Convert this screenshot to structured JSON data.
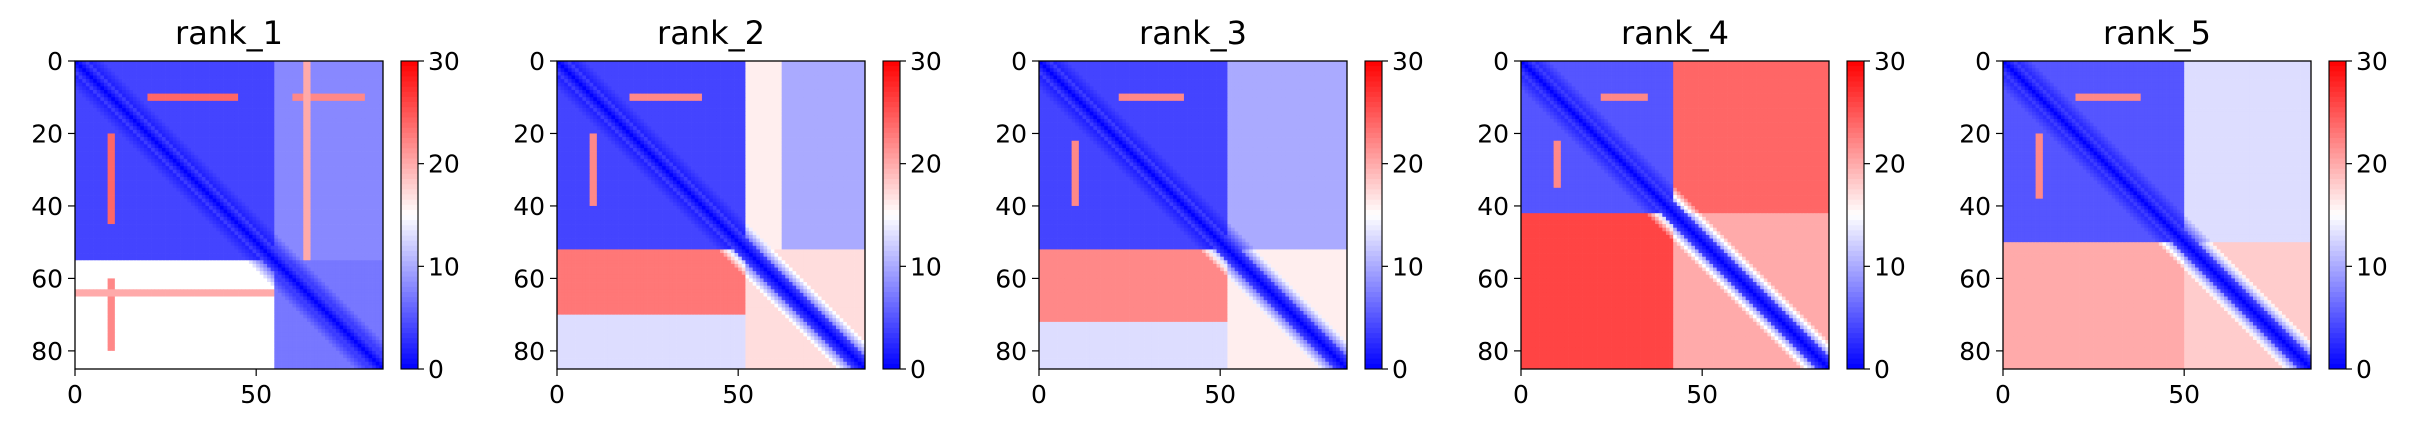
{
  "figure": {
    "panel_count": 5
  },
  "chart_data": [
    {
      "type": "heatmap",
      "title": "rank_1",
      "matrix_size": 85,
      "x_ticks": [
        0,
        50
      ],
      "y_ticks": [
        0,
        20,
        40,
        60,
        80
      ],
      "colorbar": {
        "range": [
          0,
          30
        ],
        "ticks": [
          0,
          10,
          20,
          30
        ],
        "colormap": [
          "#0000ff",
          "#ffffff",
          "#ff0000"
        ],
        "center": 15
      },
      "blocks": [
        {
          "rows": [
            0,
            55
          ],
          "cols": [
            0,
            55
          ],
          "value": 4
        },
        {
          "rows": [
            0,
            55
          ],
          "cols": [
            55,
            85
          ],
          "value": 8
        },
        {
          "rows": [
            55,
            85
          ],
          "cols": [
            0,
            55
          ],
          "value": 15
        },
        {
          "rows": [
            55,
            85
          ],
          "cols": [
            55,
            85
          ],
          "value": 7
        }
      ],
      "stripes": [
        {
          "row": 9,
          "cols": [
            20,
            45
          ],
          "value": 24
        },
        {
          "row": 9,
          "cols": [
            60,
            80
          ],
          "value": 22
        },
        {
          "row": 63,
          "cols": [
            0,
            55
          ],
          "value": 20
        }
      ]
    },
    {
      "type": "heatmap",
      "title": "rank_2",
      "matrix_size": 85,
      "x_ticks": [
        0,
        50
      ],
      "y_ticks": [
        0,
        20,
        40,
        60,
        80
      ],
      "colorbar": {
        "range": [
          0,
          30
        ],
        "ticks": [
          0,
          10,
          20,
          30
        ],
        "colormap": [
          "#0000ff",
          "#ffffff",
          "#ff0000"
        ],
        "center": 15
      },
      "blocks": [
        {
          "rows": [
            0,
            52
          ],
          "cols": [
            0,
            52
          ],
          "value": 4
        },
        {
          "rows": [
            0,
            52
          ],
          "cols": [
            52,
            62
          ],
          "value": 16
        },
        {
          "rows": [
            0,
            52
          ],
          "cols": [
            62,
            85
          ],
          "value": 10
        },
        {
          "rows": [
            52,
            70
          ],
          "cols": [
            0,
            52
          ],
          "value": 23
        },
        {
          "rows": [
            70,
            85
          ],
          "cols": [
            0,
            52
          ],
          "value": 13
        },
        {
          "rows": [
            52,
            85
          ],
          "cols": [
            52,
            85
          ],
          "value": 17
        }
      ],
      "stripes": [
        {
          "row": 9,
          "cols": [
            20,
            40
          ],
          "value": 22
        }
      ]
    },
    {
      "type": "heatmap",
      "title": "rank_3",
      "matrix_size": 85,
      "x_ticks": [
        0,
        50
      ],
      "y_ticks": [
        0,
        20,
        40,
        60,
        80
      ],
      "colorbar": {
        "range": [
          0,
          30
        ],
        "ticks": [
          0,
          10,
          20,
          30
        ],
        "colormap": [
          "#0000ff",
          "#ffffff",
          "#ff0000"
        ],
        "center": 15
      },
      "blocks": [
        {
          "rows": [
            0,
            52
          ],
          "cols": [
            0,
            52
          ],
          "value": 4
        },
        {
          "rows": [
            0,
            52
          ],
          "cols": [
            52,
            85
          ],
          "value": 10
        },
        {
          "rows": [
            52,
            72
          ],
          "cols": [
            0,
            52
          ],
          "value": 22
        },
        {
          "rows": [
            72,
            85
          ],
          "cols": [
            0,
            52
          ],
          "value": 13
        },
        {
          "rows": [
            52,
            85
          ],
          "cols": [
            52,
            85
          ],
          "value": 16
        }
      ],
      "stripes": [
        {
          "row": 9,
          "cols": [
            22,
            40
          ],
          "value": 22
        }
      ]
    },
    {
      "type": "heatmap",
      "title": "rank_4",
      "matrix_size": 85,
      "x_ticks": [
        0,
        50
      ],
      "y_ticks": [
        0,
        20,
        40,
        60,
        80
      ],
      "colorbar": {
        "range": [
          0,
          30
        ],
        "ticks": [
          0,
          10,
          20,
          30
        ],
        "colormap": [
          "#0000ff",
          "#ffffff",
          "#ff0000"
        ],
        "center": 15
      },
      "blocks": [
        {
          "rows": [
            0,
            42
          ],
          "cols": [
            0,
            42
          ],
          "value": 5
        },
        {
          "rows": [
            0,
            42
          ],
          "cols": [
            42,
            85
          ],
          "value": 24
        },
        {
          "rows": [
            42,
            85
          ],
          "cols": [
            0,
            42
          ],
          "value": 26
        },
        {
          "rows": [
            42,
            85
          ],
          "cols": [
            42,
            85
          ],
          "value": 20
        }
      ],
      "stripes": [
        {
          "row": 9,
          "cols": [
            22,
            35
          ],
          "value": 22
        }
      ]
    },
    {
      "type": "heatmap",
      "title": "rank_5",
      "matrix_size": 85,
      "x_ticks": [
        0,
        50
      ],
      "y_ticks": [
        0,
        20,
        40,
        60,
        80
      ],
      "colorbar": {
        "range": [
          0,
          30
        ],
        "ticks": [
          0,
          10,
          20,
          30
        ],
        "colormap": [
          "#0000ff",
          "#ffffff",
          "#ff0000"
        ],
        "center": 15
      },
      "blocks": [
        {
          "rows": [
            0,
            50
          ],
          "cols": [
            0,
            50
          ],
          "value": 5
        },
        {
          "rows": [
            0,
            50
          ],
          "cols": [
            50,
            85
          ],
          "value": 13
        },
        {
          "rows": [
            50,
            85
          ],
          "cols": [
            0,
            50
          ],
          "value": 20
        },
        {
          "rows": [
            50,
            85
          ],
          "cols": [
            50,
            85
          ],
          "value": 18
        }
      ],
      "stripes": [
        {
          "row": 9,
          "cols": [
            20,
            38
          ],
          "value": 22
        }
      ]
    }
  ]
}
